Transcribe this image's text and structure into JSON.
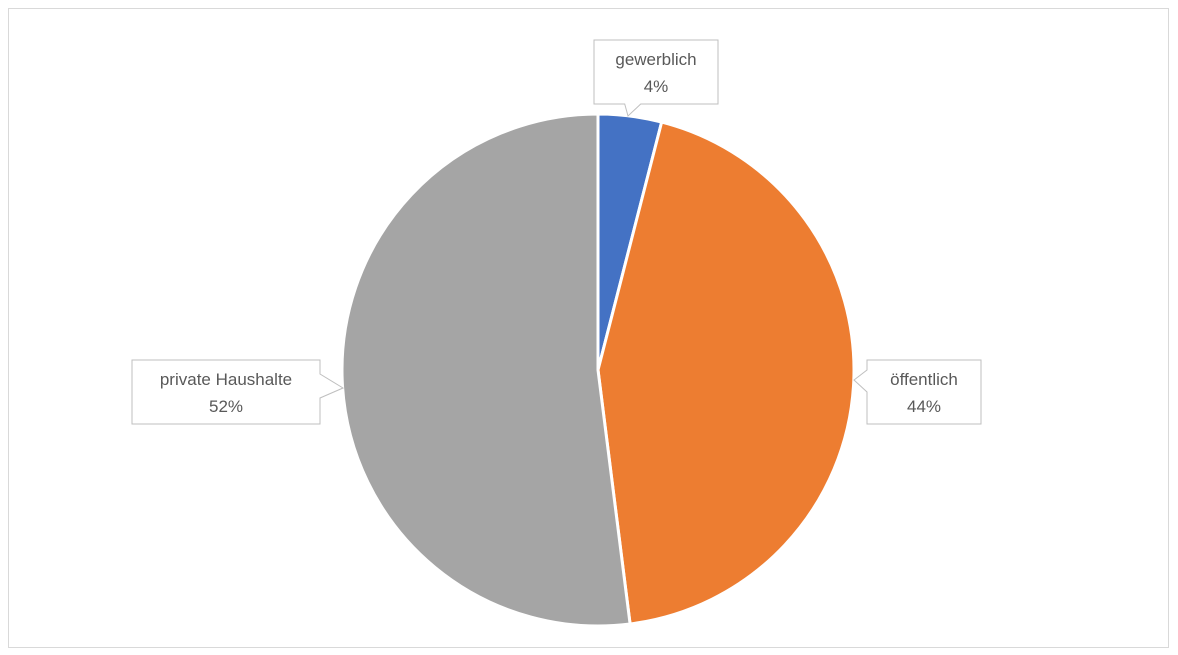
{
  "chart_data": {
    "type": "pie",
    "title": "",
    "slices": [
      {
        "label": "gewerblich",
        "value": 4,
        "value_label": "4%",
        "color": "#4472C4"
      },
      {
        "label": "öffentlich",
        "value": 44,
        "value_label": "44%",
        "color": "#ED7D31"
      },
      {
        "label": "private Haushalte",
        "value": 52,
        "value_label": "52%",
        "color": "#A5A5A5"
      }
    ],
    "start_angle_deg": 0,
    "direction": "clockwise",
    "legend": "none",
    "data_labels": "callouts"
  }
}
